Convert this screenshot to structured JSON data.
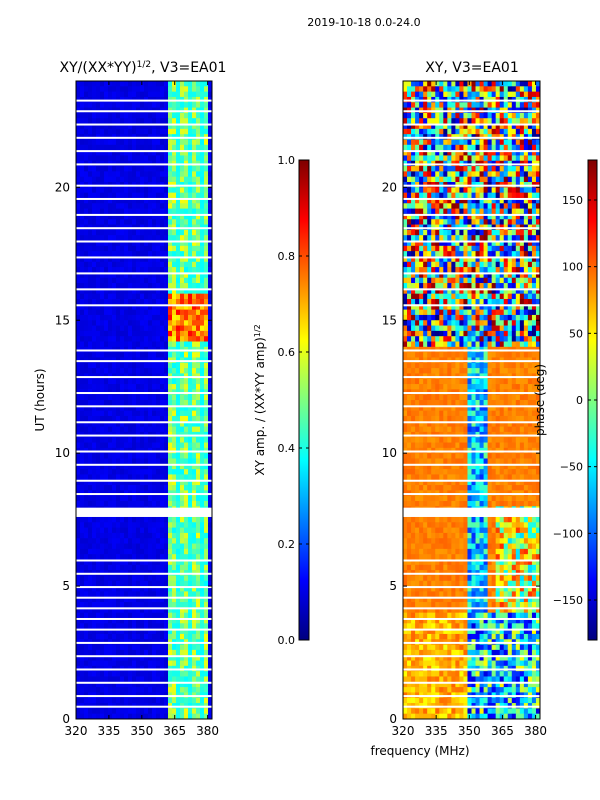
{
  "suptitle": "2019-10-18 0.0-24.0",
  "xlabel_shared": "frequency (MHz)",
  "chart_data": [
    {
      "type": "heatmap",
      "title_main": "XY/(XX*YY)",
      "title_exp": "1/2",
      "title_suffix": ", V3=EA01",
      "xlabel": "",
      "ylabel": "UT (hours)",
      "xlim": [
        320,
        382
      ],
      "ylim": [
        0,
        24
      ],
      "xticks": [
        320,
        335,
        350,
        365,
        380
      ],
      "yticks": [
        0,
        5,
        10,
        15,
        20
      ],
      "colorbar": {
        "label_main": "XY amp. / (XX*YY amp)",
        "label_exp": "1/2",
        "range": [
          0.0,
          1.0
        ],
        "ticks": [
          "0.0",
          "0.2",
          "0.4",
          "0.6",
          "0.8",
          "1.0"
        ],
        "colormap": "jet"
      },
      "description_values": {
        "background_level": 0.08,
        "bright_band_MHz": [
          362,
          381
        ],
        "bright_band_level": 0.45,
        "peak_hours": [
          14.3,
          16.0
        ],
        "peak_level": 0.78,
        "blank_rows_hours": [
          7.6,
          7.95
        ]
      }
    },
    {
      "type": "heatmap",
      "title_main": "XY",
      "title_exp": "",
      "title_suffix": ", V3=EA01",
      "xlabel": "frequency (MHz)",
      "ylabel": "",
      "xlim": [
        320,
        382
      ],
      "ylim": [
        0,
        24
      ],
      "xticks": [
        320,
        335,
        350,
        365,
        380
      ],
      "yticks": [
        0,
        5,
        10,
        15,
        20
      ],
      "colorbar": {
        "label_main": "phase (deg)",
        "label_exp": "",
        "range": [
          -180,
          180
        ],
        "ticks": [
          "−150",
          "−100",
          "−50",
          "0",
          "50",
          "100",
          "150"
        ],
        "colormap": "jet"
      },
      "description_values": {
        "dominant_phase_deg_hours_6_to_14": 90,
        "phase_wrap_band_MHz": [
          352,
          356
        ],
        "noisy_region_hours": [
          14,
          24
        ],
        "blank_rows_hours": [
          7.6,
          7.95
        ]
      }
    }
  ]
}
